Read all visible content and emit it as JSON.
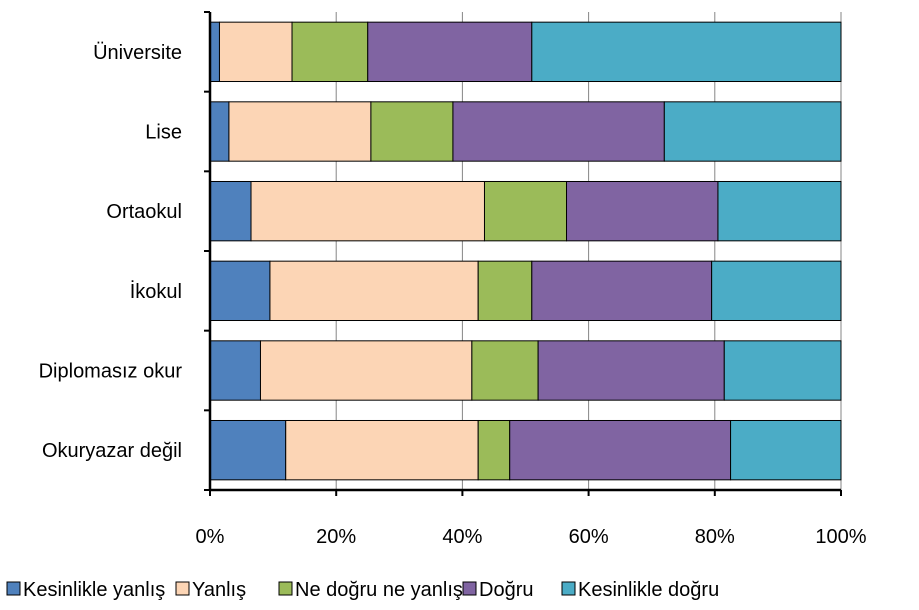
{
  "chart_data": {
    "type": "bar",
    "orientation": "horizontal",
    "stacked": "percent",
    "categories": [
      "Okuryazar değil",
      "Diplomasız okur",
      "İkokul",
      "Ortaokul",
      "Lise",
      "Üniversite"
    ],
    "series": [
      {
        "name": "Kesinlikle yanlış",
        "color": "#4F81BD",
        "values": [
          12,
          8,
          9.5,
          6.5,
          3,
          1.5
        ]
      },
      {
        "name": "Yanlış",
        "color": "#FCD5B5",
        "values": [
          30.5,
          33.5,
          33,
          37,
          22.5,
          11.5
        ]
      },
      {
        "name": "Ne doğru ne yanlış",
        "color": "#9BBB59",
        "values": [
          5,
          10.5,
          8.5,
          13,
          13,
          12
        ]
      },
      {
        "name": "Doğru",
        "color": "#8064A2",
        "values": [
          35,
          29.5,
          28.5,
          24,
          33.5,
          26
        ]
      },
      {
        "name": "Kesinlikle doğru",
        "color": "#4BACC6",
        "values": [
          17.5,
          18.5,
          20.5,
          19.5,
          28,
          49
        ]
      }
    ],
    "x_ticks": [
      "0%",
      "20%",
      "40%",
      "60%",
      "80%",
      "100%"
    ],
    "xlim": [
      0,
      100
    ],
    "grid": "vertical",
    "legend": "bottom",
    "title": "",
    "xlabel": "",
    "ylabel": ""
  }
}
